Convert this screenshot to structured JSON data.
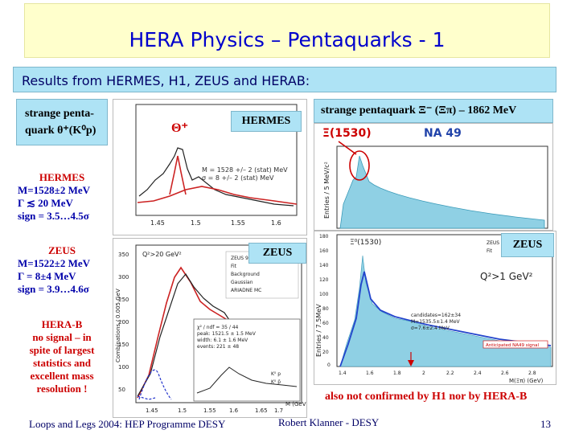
{
  "slide": {
    "title": "HERA Physics – Pentaquarks - 1",
    "subtitle": "Results from HERMES, H1, ZEUS and HERAB:"
  },
  "left": {
    "theta_box": [
      "strange penta-",
      "quark θ⁺(K⁰p)"
    ],
    "hermes": [
      "HERMES",
      "M=1528±2 MeV",
      "Γ ≲ 20 MeV",
      "sign = 3.5…4.5σ"
    ],
    "zeus": [
      "ZEUS",
      "M=1522±2 MeV",
      "Γ = 8±4 MeV",
      "sign = 3.9…4.6σ"
    ],
    "herab": [
      "HERA-B",
      "no signal – in",
      "spite of largest",
      "statistics and",
      "excellent mass",
      "resolution !"
    ]
  },
  "plots": {
    "hermes_label": "HERMES",
    "zeus_label": "ZEUS",
    "xi_header": "strange pentaquark Ξ⁻ (Ξπ) – 1862 MeV",
    "zeus_right_label": "ZEUS",
    "hermes_stats": [
      "M = 1528 +/– 2 (stat) MeV",
      "σ = 8 +/– 2 (stat) MeV"
    ],
    "theta_symbol": "Θ⁺",
    "zeus_q2": "Q²>20 GeV²",
    "zeus_y_axis": "Combinations / 0.005 GeV",
    "zeus_legend": [
      "ZEUS 96-00",
      "Fit",
      "Background",
      "Gaussian",
      "ARIADNE MC"
    ],
    "zeus_fit_stats": [
      "χ² / ndf = 35 / 44",
      "peak: 1521.5 ± 1.5 MeV",
      "width: 6.1 ± 1.6 MeV",
      "events: 221 ± 48"
    ],
    "zeus_inset_legend": [
      "K⁰ p",
      "K⁰ p̄"
    ],
    "na49_xi": "Ξ(1530)",
    "na49": "NA 49",
    "na49_label_a": "a)",
    "na49_y_axis": "Entries / 5 MeV/c²",
    "h1_xi": "Ξ⁰(1530)",
    "h1_legend": [
      "ZEUS (prel",
      "Fit"
    ],
    "h1_q2": "Q²>1 GeV²",
    "h1_fit_text": [
      "candidates=162±34",
      "M=1535.5±1.4 MeV",
      "σ=7.6±2.4 MeV"
    ],
    "anticipated": "Anticipated NA49 signal",
    "h1_y_axis": "Entries / 7.5MeV",
    "h1_x_axis": "M(Ξπ) (GeV)",
    "h1_ticks_x": [
      "1.4",
      "1.6",
      "1.8",
      "2",
      "2.2",
      "2.4",
      "2.6",
      "2.8"
    ],
    "h1_ticks_y": [
      "180",
      "160",
      "140",
      "120",
      "100",
      "80",
      "60",
      "40",
      "20",
      "0"
    ],
    "zeus_ticks_x": [
      "1.45",
      "1.5",
      "1.55",
      "1.6",
      "1.65",
      "1.7"
    ],
    "zeus_ticks_y": [
      "350",
      "300",
      "250",
      "200",
      "150",
      "100",
      "50"
    ],
    "zeus_x_axis": "M (GeV)",
    "hermes_ticks_x": [
      "1.45",
      "1.5",
      "1.55",
      "1.6"
    ]
  },
  "footer": {
    "left": "Loops and Legs 2004: HEP Programme DESY",
    "center": "Robert Klanner - DESY",
    "page": "13",
    "note": "also not confirmed by H1 nor by HERA-B"
  },
  "colors": {
    "title_bg": "#ffffcc",
    "cyan": "#aee3f5",
    "text_blue": "#000066",
    "highlight_red": "#cc0000"
  }
}
